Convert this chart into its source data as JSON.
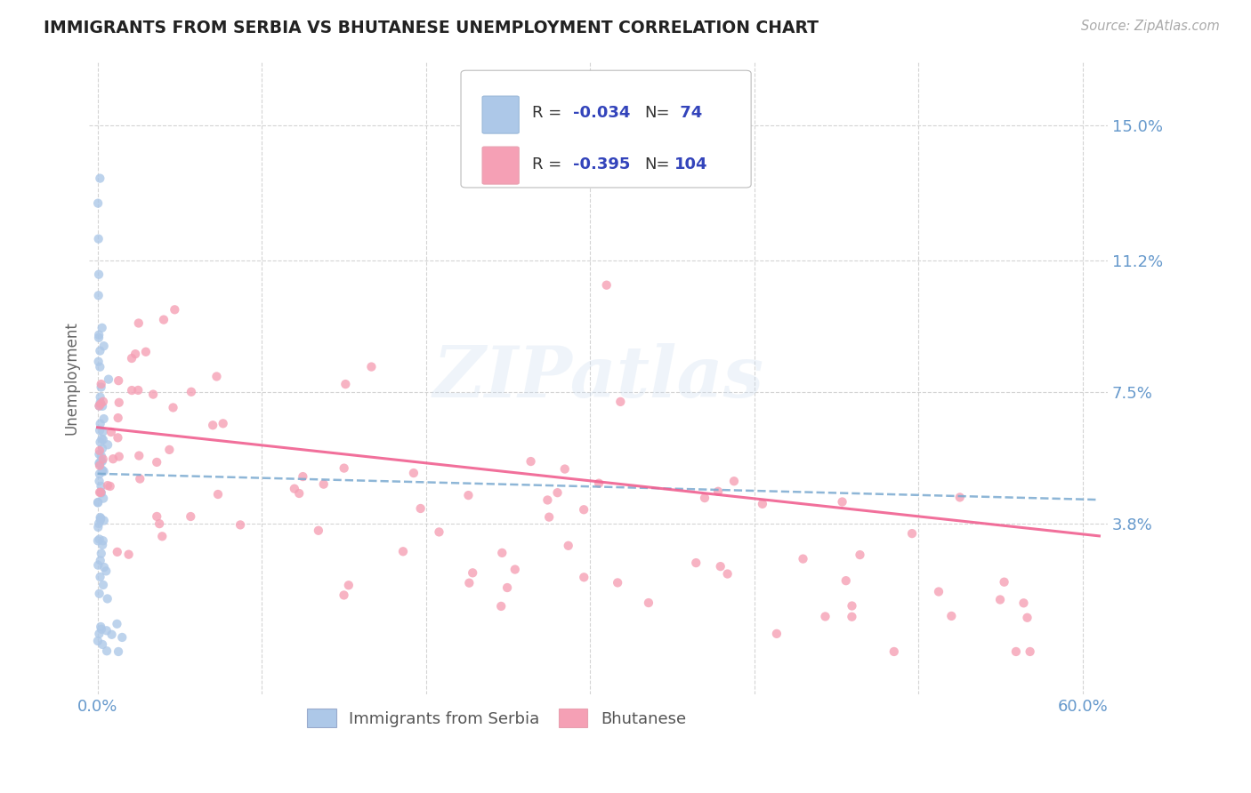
{
  "title": "IMMIGRANTS FROM SERBIA VS BHUTANESE UNEMPLOYMENT CORRELATION CHART",
  "source": "Source: ZipAtlas.com",
  "ylabel": "Unemployment",
  "series1_label": "Immigrants from Serbia",
  "series2_label": "Bhutanese",
  "series1_color": "#adc8e8",
  "series2_color": "#f5a0b5",
  "series1_line_color": "#7aaad0",
  "series2_line_color": "#f06090",
  "series1_R": -0.034,
  "series1_N": 74,
  "series2_R": -0.395,
  "series2_N": 104,
  "xlim_min": -0.005,
  "xlim_max": 0.615,
  "ylim_min": -0.01,
  "ylim_max": 0.168,
  "yticks": [
    0.038,
    0.075,
    0.112,
    0.15
  ],
  "ytick_labels": [
    "3.8%",
    "7.5%",
    "11.2%",
    "15.0%"
  ],
  "watermark": "ZIPatlas",
  "background_color": "#ffffff",
  "grid_color": "#d0d0d0",
  "title_color": "#222222",
  "axis_label_color": "#6699cc",
  "tick_label_color": "#6699cc",
  "legend_color": "#3344bb",
  "source_color": "#aaaaaa"
}
